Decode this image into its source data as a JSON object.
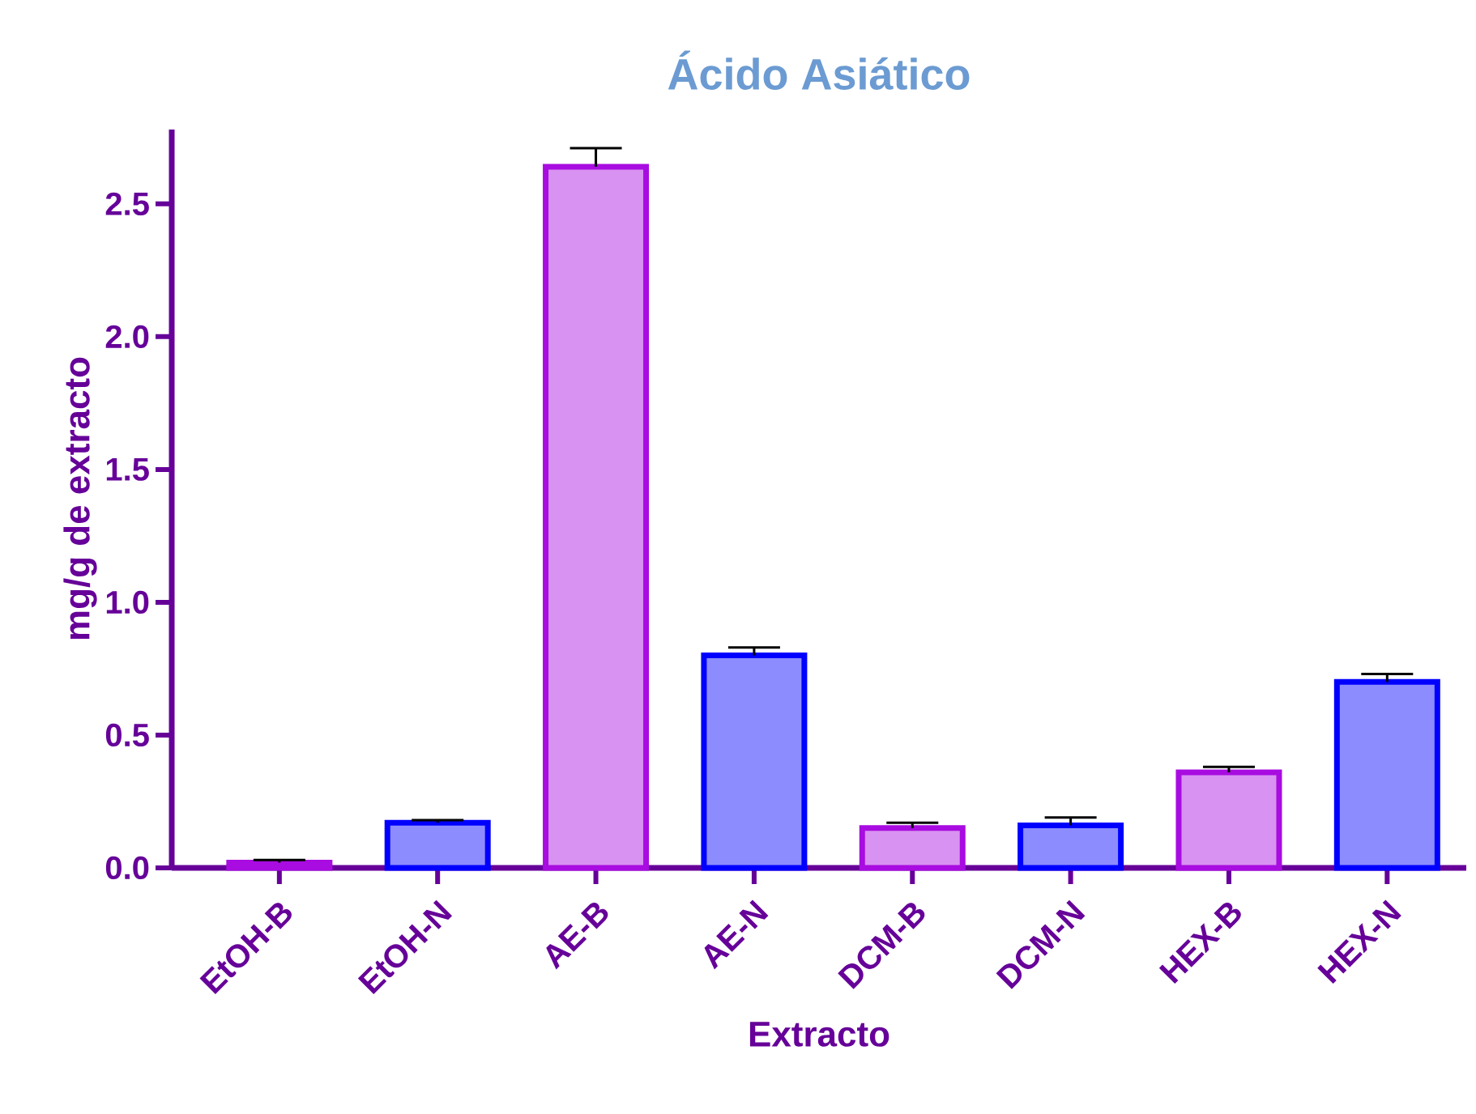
{
  "chart_data": {
    "type": "bar",
    "title": "Ácido Asiático",
    "xlabel": "Extracto",
    "ylabel": "mg/g de extracto",
    "categories": [
      "EtOH-B",
      "EtOH-N",
      "AE-B",
      "AE-N",
      "DCM-B",
      "DCM-N",
      "HEX-B",
      "HEX-N"
    ],
    "values": [
      0.02,
      0.17,
      2.64,
      0.8,
      0.15,
      0.16,
      0.36,
      0.7
    ],
    "errors": [
      0.01,
      0.01,
      0.07,
      0.03,
      0.02,
      0.03,
      0.02,
      0.03
    ],
    "colors": [
      "#a80ce0",
      "#0000ff",
      "#a80ce0",
      "#0000ff",
      "#a80ce0",
      "#0000ff",
      "#a80ce0",
      "#0000ff"
    ],
    "ylim": [
      0,
      2.78
    ],
    "yticks": [
      {
        "value": 0,
        "label": "0.0"
      },
      0.5,
      {
        "value": 1,
        "label": "1.0"
      },
      1.5,
      {
        "value": 2,
        "label": "2.0"
      },
      2.5
    ],
    "grid": false
  }
}
